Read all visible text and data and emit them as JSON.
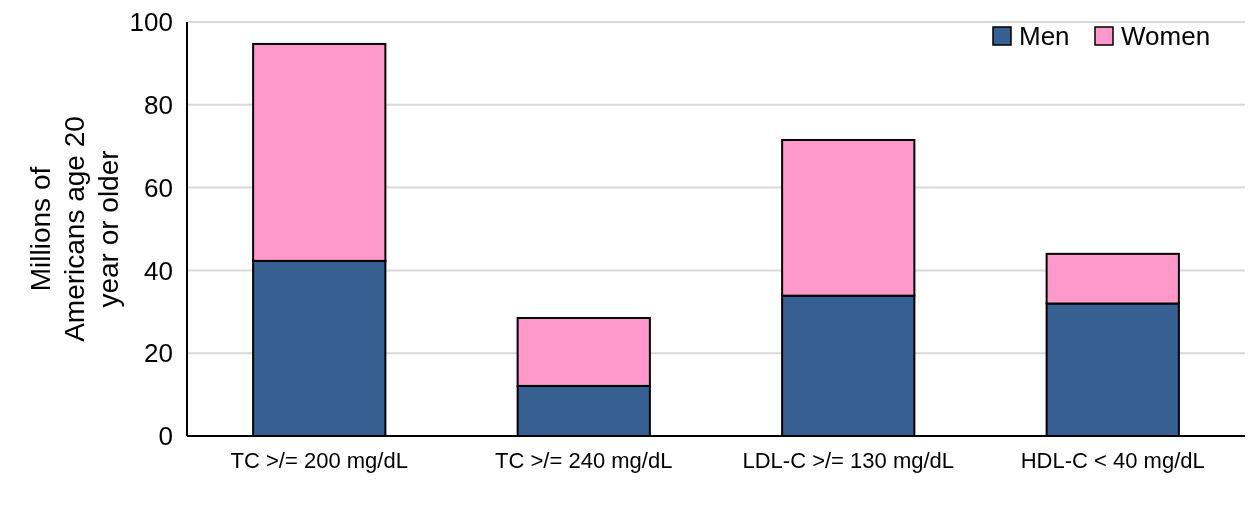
{
  "chart_data": {
    "type": "bar",
    "stacked": true,
    "ylabel": "Millions of Americans age 20 year or older",
    "categories": [
      "TC  >/= 200 mg/dL",
      "TC >/= 240 mg/dL",
      "LDL-C >/= 130 mg/dL",
      "HDL-C < 40 mg/dL"
    ],
    "series": [
      {
        "name": "Men",
        "color": "#376092",
        "values": [
          42.3,
          12.1,
          33.9,
          32
        ]
      },
      {
        "name": "Women",
        "color": "#ff99cc",
        "values": [
          52.4,
          16.4,
          37.6,
          12
        ]
      }
    ],
    "ylim": [
      0,
      100
    ],
    "yticks": [
      0,
      20,
      40,
      60,
      80,
      100
    ],
    "grid": "y",
    "legend": "top right"
  }
}
